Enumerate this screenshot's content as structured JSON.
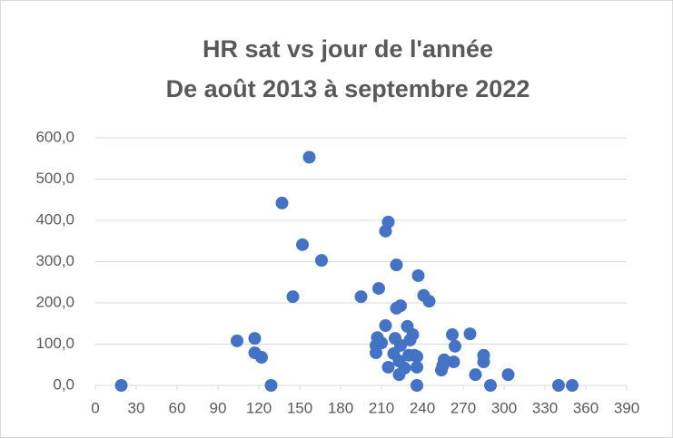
{
  "chart_data": {
    "type": "scatter",
    "title": "HR sat vs jour de l'année",
    "subtitle": "De août 2013 à septembre 2022",
    "color": "#4472c4",
    "grid": true,
    "x": [
      19,
      157,
      137,
      152,
      166,
      145,
      104,
      117,
      117,
      122,
      129,
      195,
      208,
      215,
      213,
      221,
      237,
      241,
      245,
      224,
      221,
      213,
      229,
      207,
      210,
      206,
      206,
      220,
      224,
      233,
      215,
      223,
      227,
      223,
      230,
      236,
      236,
      236,
      234,
      255,
      256,
      254,
      262,
      264,
      263,
      275,
      279,
      285,
      285,
      290,
      303,
      340,
      350,
      231,
      219
    ],
    "values": [
      0,
      553,
      442,
      341,
      303,
      215,
      108,
      79,
      114,
      68,
      0,
      215,
      235,
      396,
      374,
      292,
      266,
      218,
      204,
      193,
      187,
      145,
      143,
      116,
      103,
      97,
      79,
      114,
      97,
      123,
      44,
      59,
      42,
      26,
      73,
      70,
      44,
      0,
      73,
      48,
      62,
      37,
      123,
      95,
      57,
      125,
      26,
      73,
      57,
      0,
      26,
      0,
      0,
      110,
      77
    ],
    "xlim": [
      0,
      390
    ],
    "xticks": [
      0,
      30,
      60,
      90,
      120,
      150,
      180,
      210,
      240,
      270,
      300,
      330,
      360,
      390
    ],
    "ylim": [
      0,
      600
    ],
    "yticks": [
      {
        "value": 0,
        "label": "0,0"
      },
      {
        "value": 100,
        "label": "100,0"
      },
      {
        "value": 200,
        "label": "200,0"
      },
      {
        "value": 300,
        "label": "300,0"
      },
      {
        "value": 400,
        "label": "400,0"
      },
      {
        "value": 500,
        "label": "500,0"
      },
      {
        "value": 600,
        "label": "600,0"
      }
    ]
  }
}
